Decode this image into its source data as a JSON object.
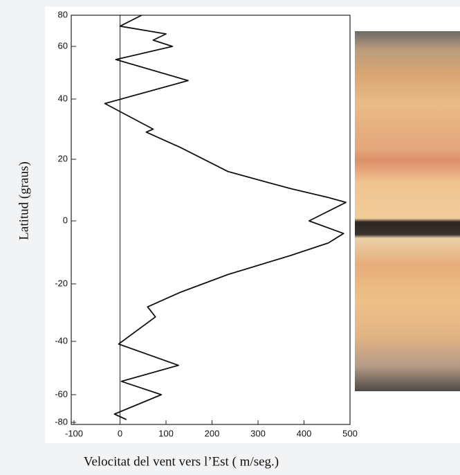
{
  "chart_data": {
    "type": "line",
    "xlabel": "Velocitat del vent vers l’Est ( m/seg.)",
    "ylabel": "Latitud (graus)",
    "xlim": [
      -100,
      500
    ],
    "xticks": [
      -100,
      0,
      100,
      200,
      300,
      400,
      500
    ],
    "ylim": [
      -80,
      80
    ],
    "yticks": [
      80,
      60,
      40,
      20,
      0,
      -20,
      -40,
      -60,
      -80
    ],
    "series": [
      {
        "color": "#111111",
        "x": [
          47,
          0,
          100,
          72,
          114,
          -9,
          148,
          -33,
          72,
          57,
          130,
          235,
          370,
          453,
          491,
          411,
          486,
          453,
          370,
          235,
          130,
          60,
          77,
          -3,
          127,
          3,
          90,
          -12,
          14
        ],
        "values": [
          80,
          73,
          68,
          64,
          60,
          55,
          47,
          38.5,
          30,
          29,
          24,
          16,
          10.5,
          7.6,
          6,
          0,
          -4,
          -7,
          -11,
          -17,
          -23,
          -28,
          -31.5,
          -41,
          -49,
          -55,
          -60,
          -74,
          -78
        ]
      }
    ]
  }
}
